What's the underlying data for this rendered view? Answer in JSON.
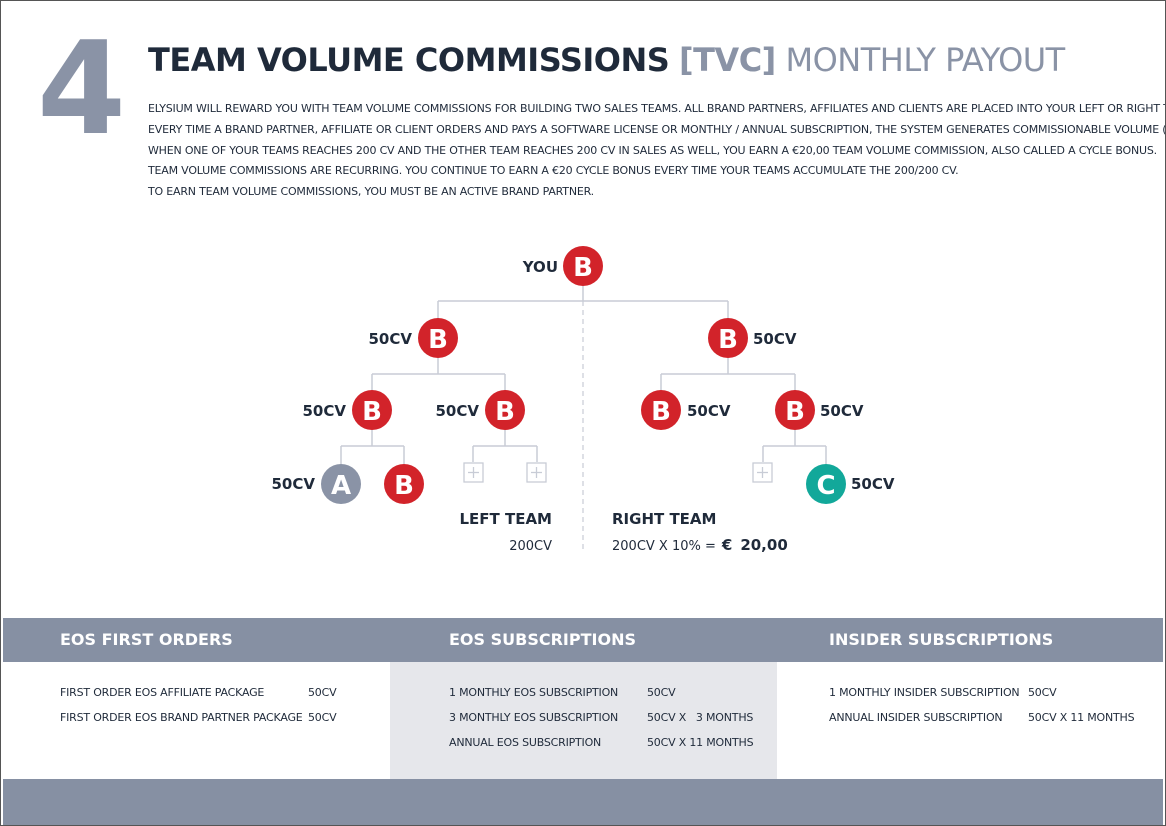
{
  "section_number": "4",
  "title": {
    "part1": "TEAM VOLUME COMMISSIONS",
    "part2": "[TVC]",
    "part3": "MONTHLY PAYOUT"
  },
  "intro_lines": [
    "ELYSIUM WILL REWARD YOU WITH TEAM VOLUME COMMISSIONS FOR BUILDING TWO SALES TEAMS. ALL BRAND PARTNERS, AFFILIATES AND CLIENTS ARE PLACED INTO YOUR LEFT OR RIGHT TEAM.",
    "EVERY TIME A BRAND PARTNER, AFFILIATE OR CLIENT ORDERS AND PAYS A SOFTWARE LICENSE OR MONTHLY / ANNUAL SUBSCRIPTION, THE SYSTEM GENERATES COMMISSIONABLE VOLUME (CV).",
    "WHEN ONE OF YOUR TEAMS REACHES 200 CV AND THE OTHER TEAM REACHES 200 CV IN SALES AS WELL, YOU EARN A €20,00 TEAM VOLUME COMMISSION, ALSO CALLED A CYCLE BONUS.",
    "TEAM VOLUME COMMISSIONS ARE RECURRING. YOU CONTINUE TO EARN A €20 CYCLE BONUS EVERY TIME YOUR TEAMS ACCUMULATE THE 200/200 CV.",
    "TO EARN TEAM VOLUME COMMISSIONS, YOU MUST BE AN ACTIVE BRAND PARTNER."
  ],
  "tree": {
    "you_label": "YOU",
    "cv_label": "50CV",
    "letters": {
      "brand_partner": "B",
      "affiliate": "A",
      "client": "C"
    },
    "colors": {
      "brand_partner": "#d2232a",
      "affiliate": "#8a93a6",
      "client": "#12a89a",
      "line": "#c8ccd6",
      "dark": "#1f2a3a"
    },
    "icon_names": {
      "empty_slot": "plus-icon"
    },
    "left_team": {
      "label": "LEFT TEAM",
      "value": "200CV"
    },
    "right_team": {
      "label": "RIGHT TEAM",
      "value_prefix": "200CV X 10% =",
      "value_euro": "€",
      "value_amount": "20,00"
    }
  },
  "footer": {
    "columns": [
      {
        "heading": "EOS FIRST ORDERS",
        "rows": [
          {
            "item": "FIRST ORDER EOS AFFILIATE PACKAGE",
            "cv": "50CV"
          },
          {
            "item": "FIRST ORDER EOS BRAND PARTNER PACKAGE",
            "cv": "50CV"
          }
        ]
      },
      {
        "heading": "EOS SUBSCRIPTIONS",
        "rows": [
          {
            "item": "1 MONTHLY EOS SUBSCRIPTION",
            "cv": "50CV"
          },
          {
            "item": "3 MONTHLY EOS SUBSCRIPTION",
            "cv": "50CV X   3 MONTHS"
          },
          {
            "item": "ANNUAL EOS SUBSCRIPTION",
            "cv": "50CV X 11 MONTHS"
          }
        ]
      },
      {
        "heading": "INSIDER SUBSCRIPTIONS",
        "rows": [
          {
            "item": "1 MONTHLY INSIDER SUBSCRIPTION",
            "cv": "50CV"
          },
          {
            "item": "ANNUAL INSIDER SUBSCRIPTION",
            "cv": "50CV X 11 MONTHS"
          }
        ]
      }
    ]
  }
}
